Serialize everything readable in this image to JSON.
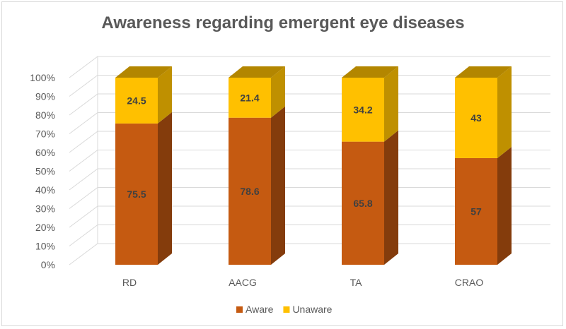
{
  "chart_data": {
    "type": "bar",
    "stacked": true,
    "percent_stacked": true,
    "three_d": true,
    "title": "Awareness regarding emergent eye diseases",
    "categories": [
      "RD",
      "AACG",
      "TA",
      "CRAO"
    ],
    "series": [
      {
        "name": "Aware",
        "values": [
          75.5,
          78.6,
          65.8,
          57
        ],
        "color": "#c55a11",
        "side_color": "#843c0c",
        "top_color": "#a14a0e"
      },
      {
        "name": "Unaware",
        "values": [
          24.5,
          21.4,
          34.2,
          43
        ],
        "color": "#ffc000",
        "side_color": "#bf9000",
        "top_color": "#b38600"
      }
    ],
    "y_ticks": [
      "0%",
      "10%",
      "20%",
      "30%",
      "40%",
      "50%",
      "60%",
      "70%",
      "80%",
      "90%",
      "100%"
    ],
    "ylim": [
      0,
      100
    ],
    "grid": true,
    "legend_position": "bottom"
  }
}
